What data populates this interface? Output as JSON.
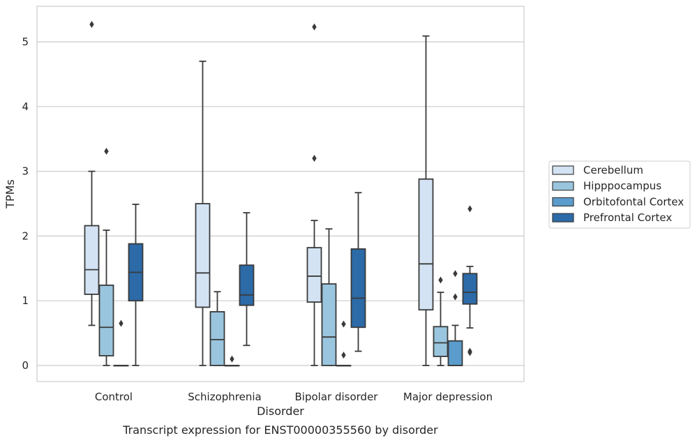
{
  "chart_data": {
    "type": "boxplot",
    "title": "",
    "caption": "Transcript expression for ENST00000355560 by disorder",
    "xlabel": "Disorder",
    "ylabel": "TPMs",
    "ylim": [
      -0.25,
      5.55
    ],
    "yticks": [
      0,
      1,
      2,
      3,
      4,
      5
    ],
    "grid": "horizontal",
    "legend_position": "right",
    "categories": [
      "Control",
      "Schizophrenia",
      "Bipolar disorder",
      "Major depression"
    ],
    "series": [
      {
        "name": "Cerebellum",
        "color": "#d3e3f3",
        "boxes": [
          {
            "whislo": 0.62,
            "q1": 1.1,
            "med": 1.48,
            "q3": 2.16,
            "whishi": 3.0,
            "fliers": [
              5.27
            ]
          },
          {
            "whislo": 0.0,
            "q1": 0.9,
            "med": 1.43,
            "q3": 2.5,
            "whishi": 4.7,
            "fliers": []
          },
          {
            "whislo": 0.0,
            "q1": 0.98,
            "med": 1.38,
            "q3": 1.82,
            "whishi": 2.24,
            "fliers": [
              3.2,
              5.23
            ]
          },
          {
            "whislo": 0.0,
            "q1": 0.86,
            "med": 1.57,
            "q3": 2.88,
            "whishi": 5.09,
            "fliers": []
          }
        ]
      },
      {
        "name": "Hipppocampus",
        "color": "#9ac5de",
        "boxes": [
          {
            "whislo": 0.0,
            "q1": 0.15,
            "med": 0.59,
            "q3": 1.24,
            "whishi": 2.09,
            "fliers": [
              3.31
            ]
          },
          {
            "whislo": 0.0,
            "q1": 0.0,
            "med": 0.4,
            "q3": 0.83,
            "whishi": 1.14,
            "fliers": []
          },
          {
            "whislo": 0.0,
            "q1": 0.0,
            "med": 0.44,
            "q3": 1.26,
            "whishi": 2.11,
            "fliers": []
          },
          {
            "whislo": 0.0,
            "q1": 0.14,
            "med": 0.35,
            "q3": 0.6,
            "whishi": 1.13,
            "fliers": [
              1.32
            ]
          }
        ]
      },
      {
        "name": "Orbitofontal Cortex",
        "color": "#5a9ccc",
        "boxes": [
          {
            "whislo": 0.0,
            "q1": 0.0,
            "med": 0.0,
            "q3": 0.0,
            "whishi": 0.0,
            "fliers": [
              0.65
            ]
          },
          {
            "whislo": 0.0,
            "q1": 0.0,
            "med": 0.0,
            "q3": 0.0,
            "whishi": 0.0,
            "fliers": [
              0.1
            ]
          },
          {
            "whislo": 0.0,
            "q1": 0.0,
            "med": 0.0,
            "q3": 0.0,
            "whishi": 0.0,
            "fliers": [
              0.16,
              0.64
            ]
          },
          {
            "whislo": 0.0,
            "q1": 0.0,
            "med": 0.0,
            "q3": 0.38,
            "whishi": 0.62,
            "fliers": [
              1.06,
              1.42
            ]
          }
        ]
      },
      {
        "name": "Prefrontal Cortex",
        "color": "#2c6aa8",
        "boxes": [
          {
            "whislo": 0.0,
            "q1": 1.0,
            "med": 1.44,
            "q3": 1.88,
            "whishi": 2.49,
            "fliers": []
          },
          {
            "whislo": 0.31,
            "q1": 0.93,
            "med": 1.09,
            "q3": 1.55,
            "whishi": 2.36,
            "fliers": []
          },
          {
            "whislo": 0.22,
            "q1": 0.59,
            "med": 1.04,
            "q3": 1.8,
            "whishi": 2.67,
            "fliers": []
          },
          {
            "whislo": 0.58,
            "q1": 0.95,
            "med": 1.13,
            "q3": 1.42,
            "whishi": 1.53,
            "fliers": [
              0.2,
              0.22,
              2.42
            ]
          }
        ]
      }
    ]
  }
}
